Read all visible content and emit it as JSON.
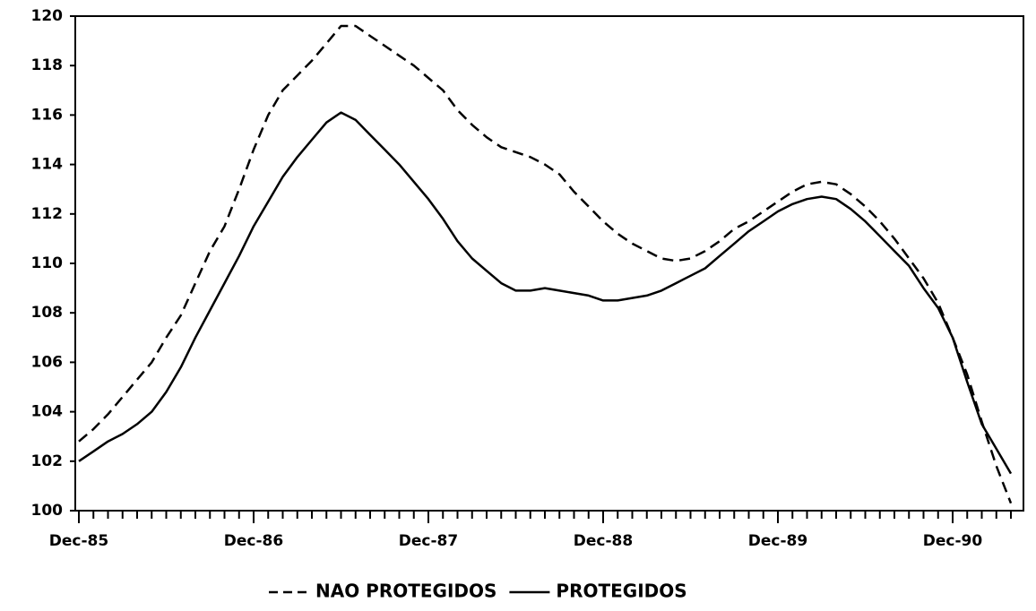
{
  "chart_data": {
    "type": "line",
    "categories": [
      "Dec-85",
      null,
      null,
      null,
      null,
      null,
      null,
      null,
      null,
      null,
      null,
      null,
      "Dec-86",
      null,
      null,
      null,
      null,
      null,
      null,
      null,
      null,
      null,
      null,
      null,
      "Dec-87",
      null,
      null,
      null,
      null,
      null,
      null,
      null,
      null,
      null,
      null,
      null,
      "Dec-88",
      null,
      null,
      null,
      null,
      null,
      null,
      null,
      null,
      null,
      null,
      null,
      "Dec-89",
      null,
      null,
      null,
      null,
      null,
      null,
      null,
      null,
      null,
      null,
      null,
      "Dec-90",
      null,
      null,
      null,
      null
    ],
    "series": [
      {
        "name": "NAO PROTEGIDOS",
        "color": "#000000",
        "dash": true,
        "values": [
          102.8,
          103.3,
          103.9,
          104.6,
          105.3,
          106.0,
          107.0,
          107.9,
          109.2,
          110.5,
          111.5,
          113.0,
          114.6,
          116.0,
          117.0,
          117.6,
          118.2,
          118.9,
          119.6,
          119.6,
          119.2,
          118.8,
          118.4,
          118.0,
          117.5,
          117.0,
          116.2,
          115.6,
          115.1,
          114.7,
          114.5,
          114.3,
          114.0,
          113.6,
          112.9,
          112.3,
          111.7,
          111.2,
          110.8,
          110.5,
          110.2,
          110.1,
          110.2,
          110.5,
          110.9,
          111.4,
          111.7,
          112.1,
          112.5,
          112.9,
          113.2,
          113.3,
          113.2,
          112.8,
          112.3,
          111.7,
          111.0,
          110.2,
          109.4,
          108.4,
          107.0,
          105.5,
          103.6,
          101.8,
          100.3
        ]
      },
      {
        "name": "PROTEGIDOS",
        "color": "#000000",
        "dash": false,
        "values": [
          102.0,
          102.4,
          102.8,
          103.1,
          103.5,
          104.0,
          104.8,
          105.8,
          107.0,
          108.1,
          109.2,
          110.3,
          111.5,
          112.5,
          113.5,
          114.3,
          115.0,
          115.7,
          116.1,
          115.8,
          115.2,
          114.6,
          114.0,
          113.3,
          112.6,
          111.8,
          110.9,
          110.2,
          109.7,
          109.2,
          108.9,
          108.9,
          109.0,
          108.9,
          108.8,
          108.7,
          108.5,
          108.5,
          108.6,
          108.7,
          108.9,
          109.2,
          109.5,
          109.8,
          110.3,
          110.8,
          111.3,
          111.7,
          112.1,
          112.4,
          112.6,
          112.7,
          112.6,
          112.2,
          111.7,
          111.1,
          110.5,
          109.9,
          109.0,
          108.2,
          107.0,
          105.2,
          103.5,
          102.5,
          101.5
        ]
      }
    ],
    "ylim": [
      100,
      120
    ],
    "yticks": [
      100,
      102,
      104,
      106,
      108,
      110,
      112,
      114,
      116,
      118,
      120
    ],
    "grid": false,
    "legend": "bottom"
  }
}
